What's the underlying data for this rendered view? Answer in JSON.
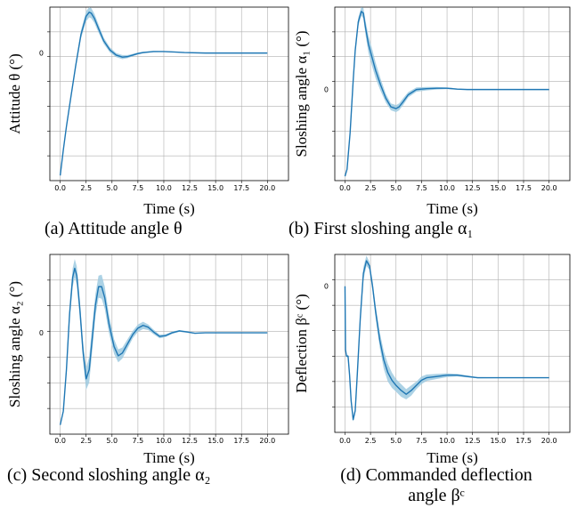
{
  "chart_data": [
    {
      "type": "line",
      "caption": "(a) Attitude angle θ",
      "ylabel": "Attitude θ (°)",
      "xlabel": "Time (s)",
      "xlim": [
        0,
        20
      ],
      "xticks": [
        "0.0",
        "2.5",
        "5.0",
        "7.5",
        "10.0",
        "12.5",
        "15.0",
        "17.5",
        "20.0"
      ],
      "ylim": [
        -1.25,
        0.45
      ],
      "zero_label": "0",
      "series": [
        {
          "x": [
            0,
            0.3,
            0.6,
            1.0,
            1.5,
            2.0,
            2.5,
            2.8,
            3.0,
            3.3,
            3.7,
            4.2,
            4.8,
            5.4,
            6.0,
            6.5,
            7.0,
            7.5,
            8.0,
            9.0,
            10.0,
            11.0,
            12.0,
            14.0,
            16.0,
            18.0,
            20.0
          ],
          "y": [
            -1.2,
            -0.95,
            -0.72,
            -0.45,
            -0.12,
            0.18,
            0.36,
            0.4,
            0.39,
            0.34,
            0.24,
            0.12,
            0.03,
            -0.02,
            -0.04,
            -0.035,
            -0.02,
            -0.005,
            0.005,
            0.015,
            0.015,
            0.01,
            0.005,
            0.0,
            0.0,
            0.0,
            0.0
          ],
          "band": [
            0,
            0.01,
            0.015,
            0.02,
            0.03,
            0.04,
            0.05,
            0.05,
            0.05,
            0.045,
            0.04,
            0.03,
            0.025,
            0.02,
            0.02,
            0.015,
            0.012,
            0.01,
            0.008,
            0.006,
            0.004,
            0.003,
            0.002,
            0.001,
            0.001,
            0.001,
            0.001
          ]
        }
      ]
    },
    {
      "type": "line",
      "caption": "(b) First sloshing angle α₁",
      "ylabel": "Sloshing angle α₁ (°)",
      "xlabel": "Time (s)",
      "xlim": [
        0,
        20
      ],
      "xticks": [
        "0.0",
        "2.5",
        "5.0",
        "7.5",
        "10.0",
        "12.5",
        "15.0",
        "17.5",
        "20.0"
      ],
      "ylim": [
        -1.05,
        0.95
      ],
      "zero_label": "0",
      "series": [
        {
          "x": [
            0,
            0.2,
            0.5,
            0.8,
            1.0,
            1.3,
            1.6,
            1.8,
            2.0,
            2.3,
            2.7,
            3.0,
            3.5,
            4.0,
            4.5,
            5.0,
            5.3,
            5.7,
            6.2,
            7.0,
            8.0,
            9.0,
            10.0,
            11.0,
            12.0,
            14.0,
            16.0,
            18.0,
            20.0
          ],
          "y": [
            -1.0,
            -0.92,
            -0.5,
            0.1,
            0.45,
            0.78,
            0.9,
            0.88,
            0.72,
            0.52,
            0.35,
            0.22,
            0.05,
            -0.1,
            -0.2,
            -0.22,
            -0.2,
            -0.14,
            -0.06,
            0.0,
            0.01,
            0.015,
            0.015,
            0.005,
            0.0,
            0.0,
            0.0,
            0.0,
            0.0
          ],
          "band": [
            0,
            0.01,
            0.02,
            0.03,
            0.04,
            0.05,
            0.05,
            0.06,
            0.08,
            0.1,
            0.1,
            0.09,
            0.07,
            0.05,
            0.04,
            0.04,
            0.04,
            0.04,
            0.03,
            0.025,
            0.02,
            0.015,
            0.01,
            0.006,
            0.004,
            0.002,
            0.001,
            0.001,
            0.001
          ]
        }
      ]
    },
    {
      "type": "line",
      "caption": "(c) Second sloshing angle α₂",
      "ylabel": "Sloshing angle α₂ (°)",
      "xlabel": "Time (s)",
      "xlim": [
        0,
        20
      ],
      "xticks": [
        "0.0",
        "2.5",
        "5.0",
        "7.5",
        "10.0",
        "12.5",
        "15.0",
        "17.5",
        "20.0"
      ],
      "ylim": [
        -1.1,
        0.85
      ],
      "zero_label": "0",
      "series": [
        {
          "x": [
            0,
            0.3,
            0.6,
            0.9,
            1.2,
            1.4,
            1.6,
            1.9,
            2.2,
            2.5,
            2.8,
            3.1,
            3.4,
            3.7,
            4.0,
            4.3,
            4.7,
            5.2,
            5.6,
            6.0,
            6.5,
            7.0,
            7.5,
            8.0,
            8.5,
            9.0,
            9.6,
            10.2,
            10.8,
            11.5,
            12.2,
            13.0,
            14.0,
            15.0,
            16.0,
            17.0,
            18.0,
            20.0
          ],
          "y": [
            -1.0,
            -0.85,
            -0.4,
            0.2,
            0.6,
            0.7,
            0.62,
            0.25,
            -0.2,
            -0.5,
            -0.4,
            -0.05,
            0.3,
            0.5,
            0.5,
            0.38,
            0.1,
            -0.15,
            -0.25,
            -0.22,
            -0.12,
            -0.02,
            0.05,
            0.08,
            0.06,
            0.01,
            -0.04,
            -0.03,
            0.0,
            0.02,
            0.01,
            -0.005,
            0.0,
            0.0,
            0.0,
            0.0,
            0.0,
            0.0
          ],
          "band": [
            0,
            0.02,
            0.05,
            0.08,
            0.1,
            0.1,
            0.1,
            0.1,
            0.1,
            0.12,
            0.14,
            0.14,
            0.12,
            0.12,
            0.13,
            0.12,
            0.1,
            0.08,
            0.07,
            0.06,
            0.05,
            0.04,
            0.04,
            0.04,
            0.03,
            0.025,
            0.02,
            0.015,
            0.012,
            0.01,
            0.008,
            0.006,
            0.004,
            0.003,
            0.002,
            0.002,
            0.001,
            0.001
          ]
        }
      ]
    },
    {
      "type": "line",
      "caption": "(d) Commanded deflection angle β^c",
      "ylabel": "Deflection β^c (°)",
      "xlabel": "Time (s)",
      "xlim": [
        0,
        20
      ],
      "xticks": [
        "0.0",
        "2.5",
        "5.0",
        "7.5",
        "10.0",
        "12.5",
        "15.0",
        "17.5",
        "20.0"
      ],
      "ylim": [
        -1.15,
        0.25
      ],
      "zero_label": "0",
      "series": [
        {
          "x": [
            0,
            0.05,
            0.15,
            0.3,
            0.45,
            0.6,
            0.8,
            1.0,
            1.2,
            1.5,
            1.8,
            2.1,
            2.4,
            2.7,
            3.0,
            3.4,
            3.8,
            4.2,
            4.6,
            5.0,
            5.5,
            6.0,
            6.5,
            7.0,
            7.5,
            8.0,
            9.0,
            10.0,
            11.0,
            12.0,
            13.0,
            15.0,
            17.5,
            20.0
          ],
          "y": [
            0.0,
            -0.5,
            -0.55,
            -0.55,
            -0.7,
            -0.9,
            -1.05,
            -0.98,
            -0.7,
            -0.25,
            0.1,
            0.2,
            0.16,
            0.0,
            -0.2,
            -0.42,
            -0.58,
            -0.68,
            -0.74,
            -0.78,
            -0.82,
            -0.85,
            -0.82,
            -0.78,
            -0.74,
            -0.72,
            -0.71,
            -0.7,
            -0.7,
            -0.71,
            -0.72,
            -0.72,
            -0.72,
            -0.72
          ],
          "band": [
            0,
            0.01,
            0.01,
            0.01,
            0.01,
            0.01,
            0.015,
            0.02,
            0.03,
            0.05,
            0.05,
            0.04,
            0.03,
            0.04,
            0.05,
            0.06,
            0.07,
            0.07,
            0.06,
            0.05,
            0.05,
            0.04,
            0.04,
            0.03,
            0.03,
            0.025,
            0.02,
            0.015,
            0.01,
            0.008,
            0.005,
            0.003,
            0.002,
            0.001
          ]
        }
      ]
    }
  ],
  "colors": {
    "line": "#1f77b4",
    "band": "#9ecae1",
    "grid": "#b0b0b0",
    "axis": "#000000"
  }
}
